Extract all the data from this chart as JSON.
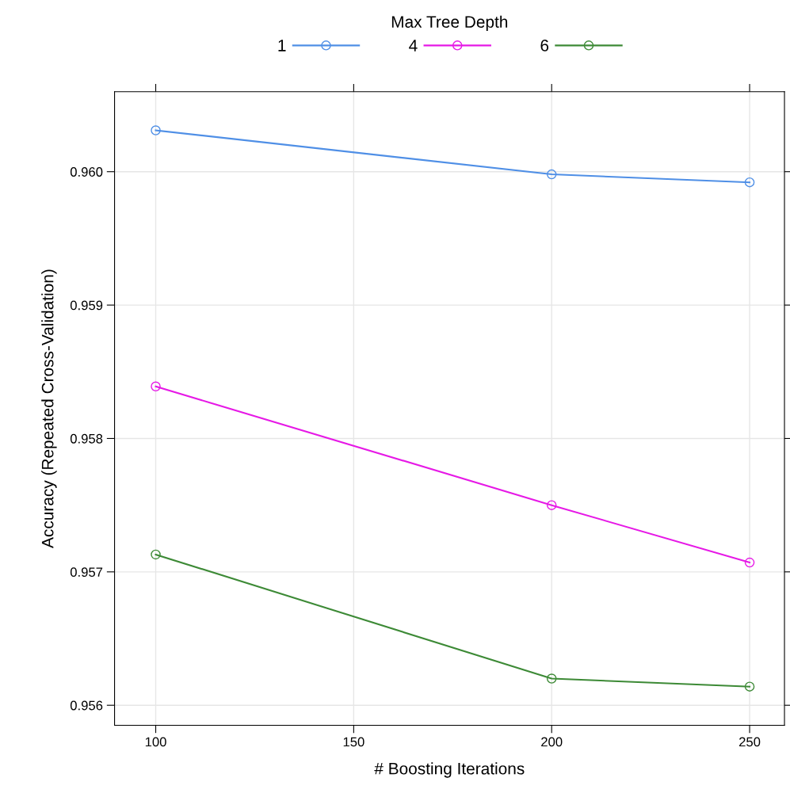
{
  "chart_data": {
    "type": "line",
    "xlabel": "# Boosting Iterations",
    "ylabel": "Accuracy (Repeated Cross-Validation)",
    "legend_title": "Max Tree Depth",
    "legend": "top",
    "grid": true,
    "marker": "circle",
    "line_style": "solid",
    "x": [
      100,
      200,
      250
    ],
    "series": [
      {
        "name": "1",
        "color": "#4f8fe6",
        "values": [
          0.96031,
          0.95998,
          0.95992
        ]
      },
      {
        "name": "4",
        "color": "#e619e6",
        "values": [
          0.95839,
          0.9575,
          0.95707
        ]
      },
      {
        "name": "6",
        "color": "#3d8a36",
        "values": [
          0.95713,
          0.9562,
          0.95614
        ]
      }
    ],
    "xlim": [
      89.6,
      258.8
    ],
    "xticks": [
      100,
      150,
      200,
      250
    ],
    "ylim": [
      0.95585,
      0.9606
    ],
    "yticks": [
      0.956,
      0.957,
      0.958,
      0.959,
      {
        "value": 0.96,
        "label": "0.960"
      }
    ]
  }
}
